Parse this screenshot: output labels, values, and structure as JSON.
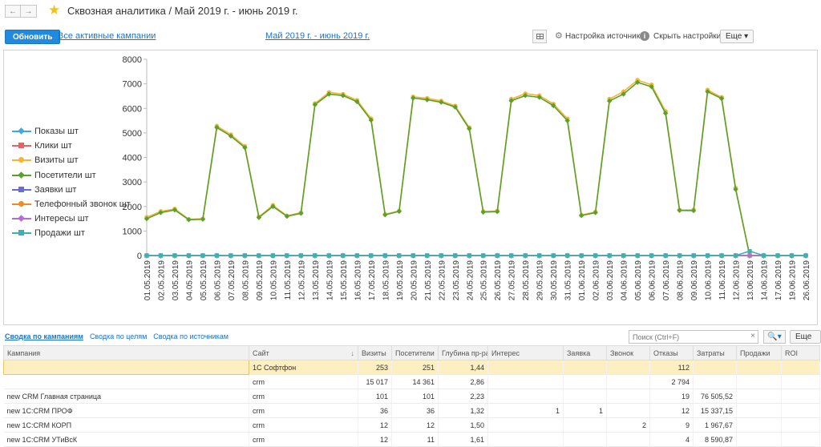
{
  "header": {
    "title": "Сквозная аналитика / Май 2019 г. - июнь 2019 г.",
    "back": "←",
    "forward": "→"
  },
  "toolbar": {
    "refresh_label": "Обновить",
    "campaigns_link": "Все активные кампании",
    "period_link": "Май 2019 г. - июнь 2019 г.",
    "sources_settings": "Настройка источников",
    "hide_settings": "Скрыть настройки",
    "more_label": "Еще"
  },
  "colors": {
    "accent": "#1f8ae0",
    "link": "#1a73c6",
    "selected_row": "#fcefc1"
  },
  "chart_data": {
    "type": "line",
    "ylim": [
      0,
      8000
    ],
    "yticks": [
      "0",
      "1000",
      "2000",
      "3000",
      "4000",
      "5000",
      "6000",
      "7000",
      "8000"
    ],
    "x": [
      "01.05.2019",
      "02.05.2019",
      "03.05.2019",
      "04.05.2019",
      "05.05.2019",
      "06.05.2019",
      "07.05.2019",
      "08.05.2019",
      "09.05.2019",
      "10.05.2019",
      "11.05.2019",
      "12.05.2019",
      "13.05.2019",
      "14.05.2019",
      "15.05.2019",
      "16.05.2019",
      "17.05.2019",
      "18.05.2019",
      "19.05.2019",
      "20.05.2019",
      "21.05.2019",
      "22.05.2019",
      "23.05.2019",
      "24.05.2019",
      "25.05.2019",
      "26.05.2019",
      "27.05.2019",
      "28.05.2019",
      "29.05.2019",
      "30.05.2019",
      "31.05.2019",
      "01.06.2019",
      "02.06.2019",
      "03.06.2019",
      "04.06.2019",
      "05.06.2019",
      "06.06.2019",
      "07.06.2019",
      "08.06.2019",
      "09.06.2019",
      "10.06.2019",
      "11.06.2019",
      "12.06.2019",
      "13.06.2019",
      "14.06.2019",
      "17.06.2019",
      "19.06.2019",
      "26.06.2019"
    ],
    "legend_position": "left",
    "grid": false,
    "series": [
      {
        "name": "Показы шт",
        "color": "#3fa9e0",
        "marker": "diamond",
        "values": [
          0,
          0,
          0,
          0,
          0,
          0,
          0,
          0,
          0,
          0,
          0,
          0,
          0,
          0,
          0,
          0,
          0,
          0,
          0,
          0,
          0,
          0,
          0,
          0,
          0,
          0,
          0,
          0,
          0,
          0,
          0,
          0,
          0,
          0,
          0,
          0,
          0,
          0,
          0,
          0,
          0,
          0,
          0,
          0,
          0,
          0,
          0,
          0
        ]
      },
      {
        "name": "Клики шт",
        "color": "#e06666",
        "marker": "square",
        "values": [
          0,
          0,
          0,
          0,
          0,
          0,
          0,
          0,
          0,
          0,
          0,
          0,
          0,
          0,
          0,
          0,
          0,
          0,
          0,
          0,
          0,
          0,
          0,
          0,
          0,
          0,
          0,
          0,
          0,
          0,
          0,
          0,
          0,
          0,
          0,
          0,
          0,
          0,
          0,
          0,
          0,
          0,
          0,
          0,
          0,
          0,
          0,
          0
        ]
      },
      {
        "name": "Визиты шт",
        "color": "#f2b632",
        "marker": "circle",
        "values": [
          1560,
          1800,
          1900,
          1480,
          1500,
          5280,
          4930,
          4450,
          1580,
          2050,
          1620,
          1750,
          6200,
          6650,
          6580,
          6330,
          5580,
          1680,
          1820,
          6470,
          6410,
          6300,
          6100,
          5220,
          1800,
          1820,
          6380,
          6600,
          6520,
          6180,
          5580,
          1650,
          1780,
          6380,
          6680,
          7150,
          6960,
          5880,
          1860,
          1860,
          6750,
          6450,
          2750,
          0,
          0,
          0,
          0,
          0
        ]
      },
      {
        "name": "Посетители шт",
        "color": "#5aa02c",
        "marker": "diamond",
        "values": [
          1500,
          1750,
          1860,
          1460,
          1480,
          5220,
          4870,
          4400,
          1550,
          2000,
          1600,
          1720,
          6150,
          6580,
          6520,
          6270,
          5520,
          1660,
          1800,
          6420,
          6350,
          6250,
          6050,
          5170,
          1770,
          1790,
          6310,
          6520,
          6450,
          6110,
          5500,
          1630,
          1750,
          6300,
          6580,
          7060,
          6880,
          5800,
          1840,
          1830,
          6680,
          6400,
          2700,
          0,
          0,
          0,
          0,
          0
        ]
      },
      {
        "name": "Заявки шт",
        "color": "#6b6bd6",
        "marker": "square",
        "values": [
          0,
          0,
          0,
          0,
          0,
          0,
          0,
          0,
          0,
          0,
          0,
          0,
          0,
          0,
          0,
          0,
          0,
          0,
          0,
          0,
          0,
          0,
          0,
          0,
          0,
          0,
          0,
          0,
          0,
          0,
          0,
          0,
          0,
          0,
          0,
          0,
          0,
          0,
          0,
          0,
          0,
          0,
          0,
          0,
          0,
          0,
          0,
          0
        ]
      },
      {
        "name": "Телефонный звонок шт",
        "color": "#f08a24",
        "marker": "circle",
        "values": [
          0,
          0,
          0,
          0,
          0,
          0,
          0,
          0,
          0,
          0,
          0,
          0,
          0,
          0,
          0,
          0,
          0,
          0,
          0,
          0,
          0,
          0,
          0,
          0,
          0,
          0,
          0,
          0,
          0,
          0,
          0,
          0,
          0,
          0,
          0,
          0,
          0,
          0,
          0,
          0,
          0,
          0,
          0,
          0,
          0,
          0,
          0,
          0
        ]
      },
      {
        "name": "Интересы шт",
        "color": "#b36bd6",
        "marker": "diamond",
        "values": [
          0,
          0,
          0,
          0,
          0,
          0,
          0,
          0,
          0,
          0,
          0,
          0,
          0,
          0,
          0,
          0,
          0,
          0,
          0,
          0,
          0,
          0,
          0,
          0,
          0,
          0,
          0,
          0,
          0,
          0,
          0,
          0,
          0,
          0,
          0,
          0,
          0,
          0,
          0,
          0,
          0,
          0,
          0,
          0,
          0,
          0,
          0,
          0
        ]
      },
      {
        "name": "Продажи шт",
        "color": "#36b5b0",
        "marker": "square",
        "values": [
          0,
          0,
          0,
          0,
          0,
          0,
          0,
          0,
          0,
          0,
          0,
          0,
          0,
          0,
          0,
          0,
          0,
          0,
          0,
          0,
          0,
          0,
          0,
          0,
          0,
          0,
          0,
          0,
          0,
          0,
          0,
          0,
          0,
          0,
          0,
          0,
          0,
          0,
          0,
          0,
          0,
          0,
          0,
          180,
          0,
          0,
          0,
          0
        ]
      }
    ]
  },
  "tabs": [
    {
      "label": "Сводка по кампаниям",
      "active": true
    },
    {
      "label": "Сводка по целям",
      "active": false
    },
    {
      "label": "Сводка по источникам",
      "active": false
    }
  ],
  "search": {
    "placeholder": "Поиск (Ctrl+F)",
    "value": "",
    "clear": "×",
    "button": "🔍▾"
  },
  "table": {
    "more_label": "Еще",
    "sort_marker": "↓",
    "headers": [
      "Кампания",
      "Сайт",
      "Визиты",
      "Посетители",
      "Глубина пр-ра",
      "Интерес",
      "Заявка",
      "Звонок",
      "Отказы",
      "Затраты",
      "Продажи",
      "ROI"
    ],
    "rows": [
      [
        "",
        "1С Софтфон",
        "253",
        "251",
        "1,44",
        "",
        "",
        "",
        "112",
        "",
        "",
        ""
      ],
      [
        "",
        "crm",
        "15 017",
        "14 361",
        "2,86",
        "",
        "",
        "",
        "2 794",
        "",
        "",
        ""
      ],
      [
        "new CRM Главная страница",
        "crm",
        "101",
        "101",
        "2,23",
        "",
        "",
        "",
        "19",
        "76 505,52",
        "",
        ""
      ],
      [
        "new 1С:CRM ПРОФ",
        "crm",
        "36",
        "36",
        "1,32",
        "1",
        "1",
        "",
        "12",
        "15 337,15",
        "",
        ""
      ],
      [
        "new 1С:CRM КОРП",
        "crm",
        "12",
        "12",
        "1,50",
        "",
        "",
        "2",
        "9",
        "1 967,67",
        "",
        ""
      ],
      [
        "new 1С:CRM УТиВсК",
        "crm",
        "12",
        "11",
        "1,61",
        "",
        "",
        "",
        "4",
        "8 590,87",
        "",
        ""
      ]
    ]
  }
}
